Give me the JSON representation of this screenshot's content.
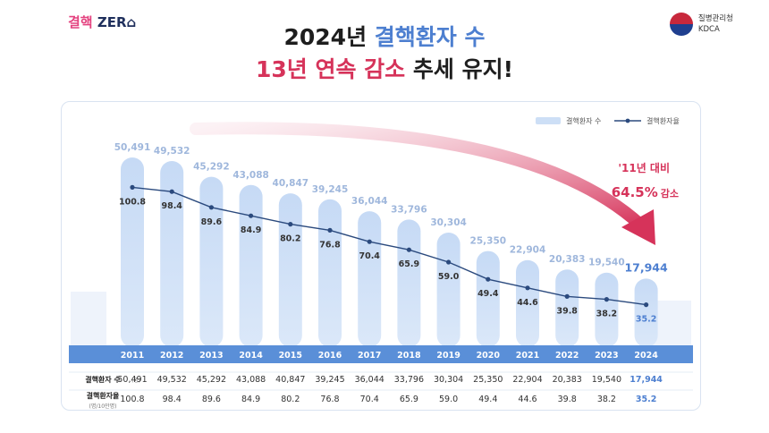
{
  "brand": {
    "logo_word_1": "결핵",
    "logo_word_2": "ZER",
    "logo_glyph": "⌂"
  },
  "agency": {
    "name_ko": "질병관리청",
    "name_en": "KDCA"
  },
  "headline": {
    "line1_pre": "2024년 ",
    "line1_em": "결핵환자 수",
    "line2_em": "13년 연속 감소",
    "line2_post": " 추세 유지!"
  },
  "colors": {
    "bar": "#c9dcf5",
    "bar_highlight": "#d8e6f8",
    "axis_band": "#5a8fd8",
    "line": "#2b4a7e",
    "accent_red": "#d6335a",
    "accent_blue": "#4d7fd0"
  },
  "annotation": {
    "line1": "'11년 대비",
    "line2": "64.5%",
    "line3": "감소"
  },
  "chart_data": {
    "type": "bar",
    "categories": [
      "2011",
      "2012",
      "2013",
      "2014",
      "2015",
      "2016",
      "2017",
      "2018",
      "2019",
      "2020",
      "2021",
      "2022",
      "2023",
      "2024"
    ],
    "series": [
      {
        "name": "결핵환자 수",
        "type": "bar",
        "values": [
          50491,
          49532,
          45292,
          43088,
          40847,
          39245,
          36044,
          33796,
          30304,
          25350,
          22904,
          20383,
          19540,
          17944
        ],
        "labels": [
          "50,491",
          "49,532",
          "45,292",
          "43,088",
          "40,847",
          "39,245",
          "36,044",
          "33,796",
          "30,304",
          "25,350",
          "22,904",
          "20,383",
          "19,540",
          "17,944"
        ]
      },
      {
        "name": "결핵환자율",
        "type": "line",
        "values": [
          100.8,
          98.4,
          89.6,
          84.9,
          80.2,
          76.8,
          70.4,
          65.9,
          59.0,
          49.4,
          44.6,
          39.8,
          38.2,
          35.2
        ],
        "labels": [
          "100.8",
          "98.4",
          "89.6",
          "84.9",
          "80.2",
          "76.8",
          "70.4",
          "65.9",
          "59.0",
          "49.4",
          "44.6",
          "39.8",
          "38.2",
          "35.2"
        ]
      }
    ],
    "legend_position": "top-right",
    "table_rows": [
      {
        "label": "결핵환자 수",
        "unit": "(명)"
      },
      {
        "label": "결핵환자율",
        "unit": "(명/10만명)"
      }
    ]
  }
}
